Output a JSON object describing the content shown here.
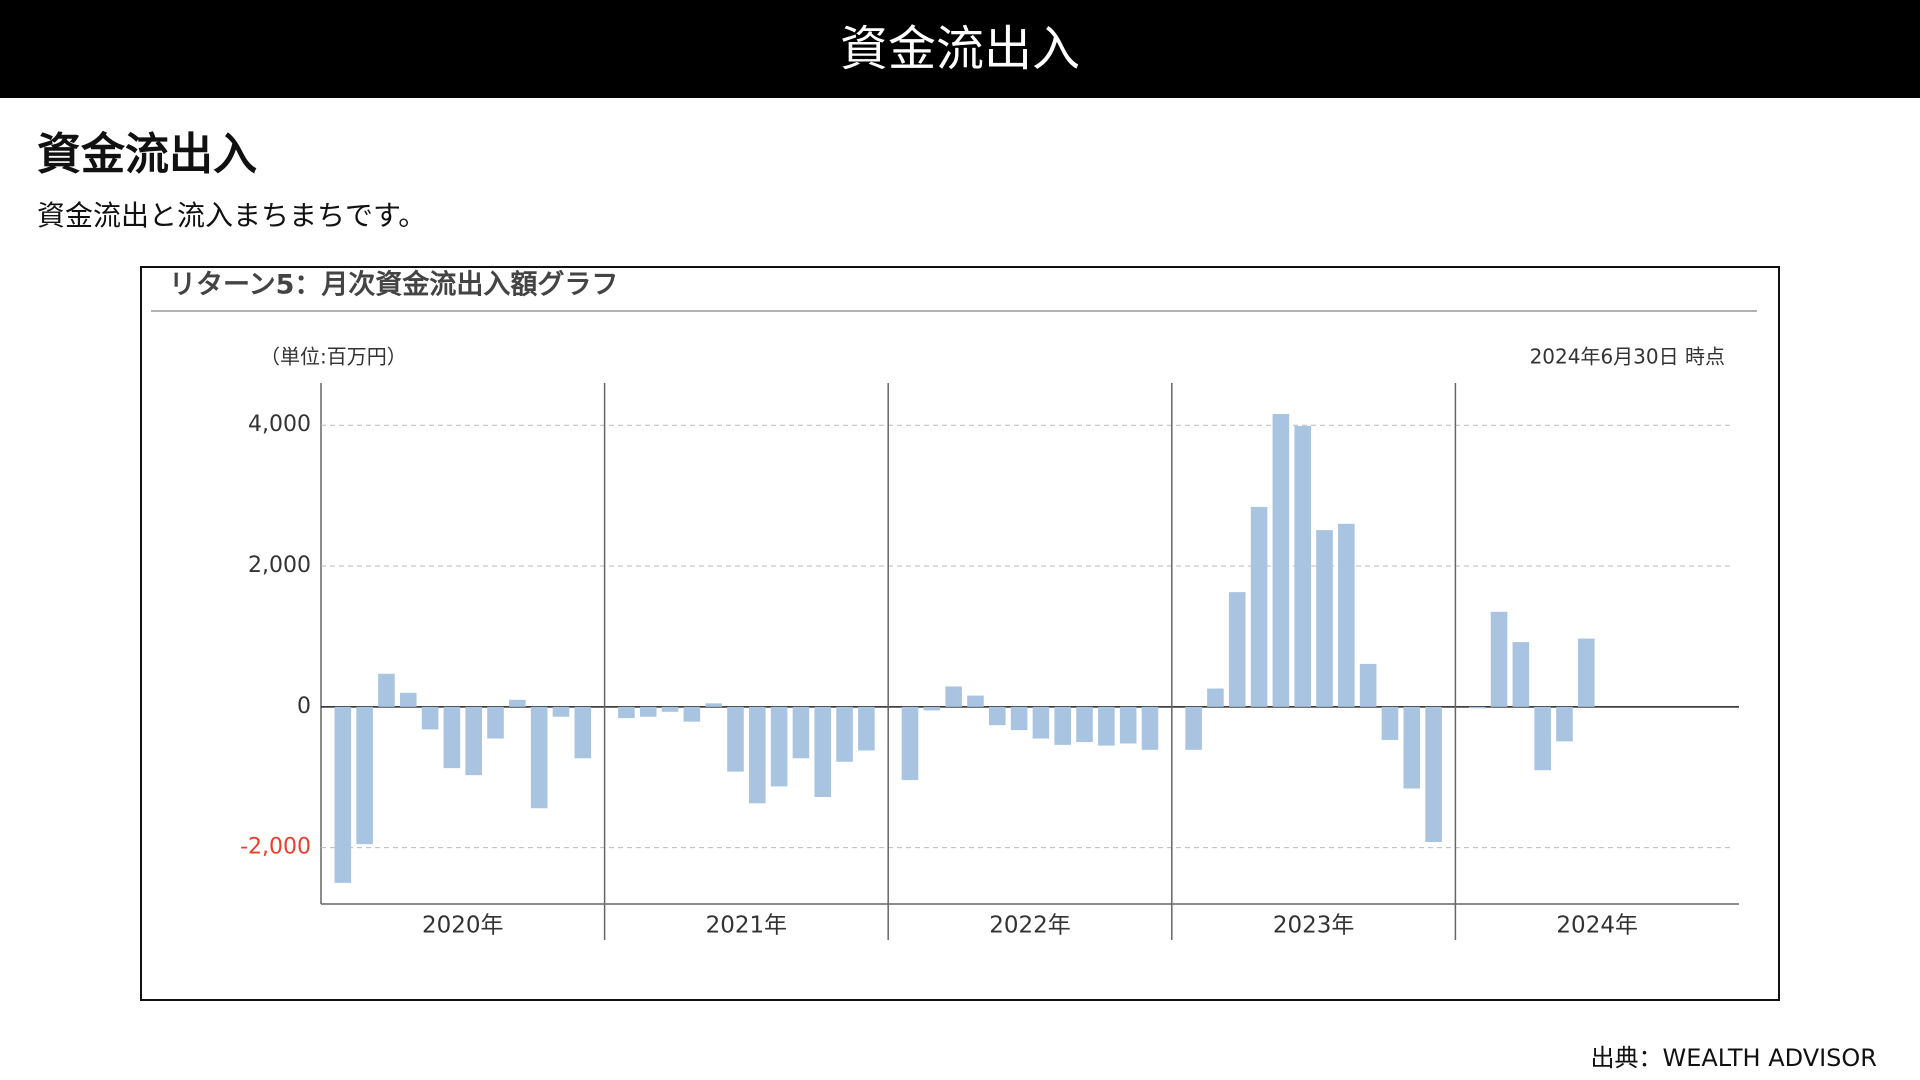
{
  "header": {
    "title": "資金流出入"
  },
  "heading": "資金流出入",
  "lead": "資金流出と流入まちまちです。",
  "source": "出典：WEALTH ADVISOR",
  "chart_data": {
    "type": "bar",
    "title": "リターン5：月次資金流出入額グラフ",
    "unit_label": "（単位:百万円）",
    "date_note": "2024年6月30日 時点",
    "groups": [
      "2020年",
      "2021年",
      "2022年",
      "2023年",
      "2024年"
    ],
    "categories": [
      null,
      null,
      null,
      null,
      null,
      null,
      null,
      null,
      null,
      null,
      null,
      null,
      null,
      null,
      null,
      null,
      null,
      null,
      null,
      null,
      null,
      null,
      null,
      null,
      null,
      null,
      null,
      null,
      null,
      null,
      null,
      null,
      null,
      null,
      null,
      null,
      null,
      null,
      null,
      null,
      null,
      null,
      null,
      null,
      null,
      null,
      null,
      null,
      null,
      null,
      null,
      null,
      null,
      null
    ],
    "values": [
      -2500,
      -1950,
      470,
      200,
      -320,
      -870,
      -970,
      -450,
      100,
      -1440,
      -140,
      -730,
      -160,
      -140,
      -70,
      -210,
      50,
      -920,
      -1370,
      -1130,
      -730,
      -1280,
      -780,
      -620,
      -1040,
      -50,
      290,
      160,
      -260,
      -330,
      -450,
      -540,
      -500,
      -550,
      -520,
      -610,
      -610,
      260,
      1630,
      2840,
      4160,
      3990,
      2510,
      2600,
      610,
      -470,
      -1160,
      -1920,
      -20,
      1350,
      920,
      -900,
      -490,
      970
    ],
    "color": "#a9c4e0",
    "ylim": [
      -2800,
      4600
    ],
    "yticks": [
      {
        "value": -2000,
        "label": "-2,000"
      },
      0,
      {
        "value": 2000,
        "label": "2,000"
      },
      {
        "value": 4000,
        "label": "4,000"
      }
    ],
    "grid": true,
    "negative_tick_color": "#e8402a"
  }
}
